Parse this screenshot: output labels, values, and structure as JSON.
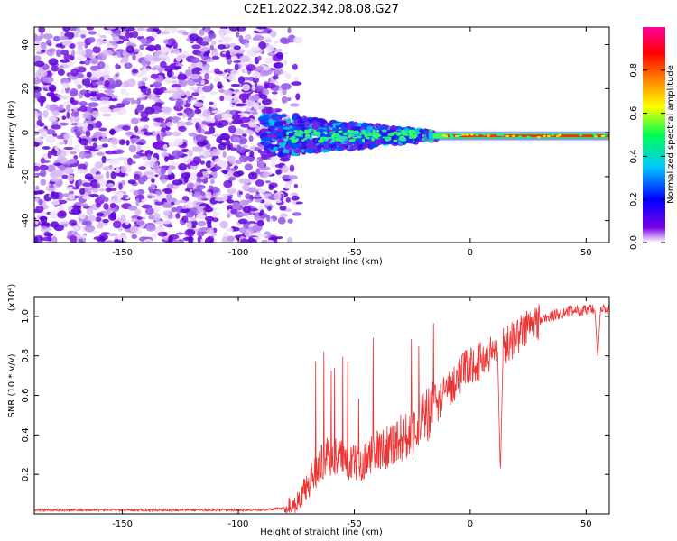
{
  "title": "C2E1.2022.342.08.08.G27",
  "chart_data": [
    {
      "type": "heatmap",
      "name": "spectrogram",
      "xlabel": "Height of straight line (km)",
      "ylabel": "Frequency (Hz)",
      "xlim": [
        -188,
        60
      ],
      "ylim": [
        -50,
        48
      ],
      "xticks": [
        -150,
        -100,
        -50,
        0,
        50
      ],
      "yticks": [
        -40,
        -20,
        0,
        20,
        40
      ],
      "noise_region_x": [
        -188,
        -80
      ],
      "signal_band_x": [
        -90,
        60
      ],
      "signal_center_freq": -1.5,
      "colorbar": {
        "label": "Normalized spectral amplitude",
        "range": [
          0.0,
          1.0
        ],
        "ticks": [
          0.0,
          0.2,
          0.4,
          0.6,
          0.8
        ],
        "tick_labels": [
          "0.0",
          "0.2",
          "0.4",
          "0.6",
          "0.8"
        ],
        "colors": [
          "#ffffff",
          "#7a00e6",
          "#0000ff",
          "#00c8ff",
          "#00ff50",
          "#ffff00",
          "#ff8000",
          "#ff0000",
          "#ff00a0"
        ]
      }
    },
    {
      "type": "line",
      "name": "snr",
      "xlabel": "Height of straight line (km)",
      "ylabel": "SNR (10 * v/v)",
      "multiplier_label": "(x10⁴)",
      "xlim": [
        -188,
        60
      ],
      "ylim": [
        0,
        1.1
      ],
      "xticks": [
        -150,
        -100,
        -50,
        0,
        50
      ],
      "yticks": [
        0.2,
        0.4,
        0.6,
        0.8,
        1.0
      ],
      "ytick_labels": [
        "0.2",
        "0.4",
        "0.6",
        "0.8",
        "1.0"
      ],
      "color": "#ee3333",
      "envelope": {
        "x": [
          -188,
          -90,
          -80,
          -75,
          -70,
          -65,
          -60,
          -55,
          -50,
          -45,
          -40,
          -35,
          -30,
          -25,
          -20,
          -15,
          -10,
          -5,
          0,
          5,
          10,
          15,
          20,
          25,
          30,
          35,
          40,
          45,
          50,
          55,
          60
        ],
        "y": [
          0.02,
          0.02,
          0.03,
          0.05,
          0.15,
          0.25,
          0.3,
          0.28,
          0.25,
          0.28,
          0.32,
          0.35,
          0.38,
          0.42,
          0.48,
          0.55,
          0.62,
          0.7,
          0.75,
          0.78,
          0.82,
          0.85,
          0.9,
          0.95,
          0.98,
          1.0,
          1.02,
          1.03,
          1.03,
          1.03,
          1.04
        ]
      },
      "annotations": [
        {
          "x": 13,
          "y": 0.2,
          "note": "dip"
        },
        {
          "x": 55,
          "y": 0.79,
          "note": "dip"
        }
      ]
    }
  ]
}
